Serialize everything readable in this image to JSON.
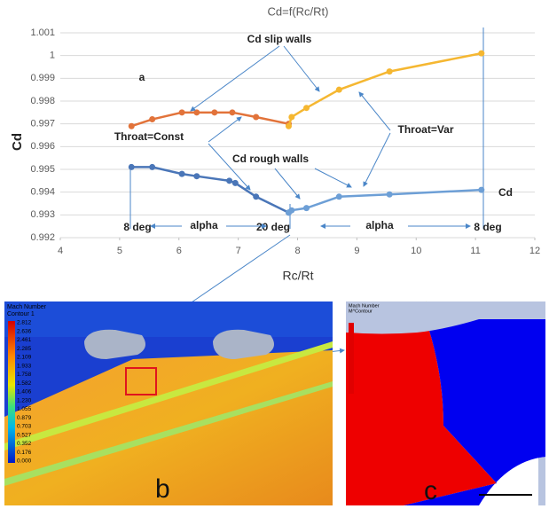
{
  "chart_data": {
    "type": "line",
    "title": "Cd=f(Rc/Rt)",
    "xlabel": "Rc/Rt",
    "ylabel": "Cd",
    "xlim": [
      4,
      12
    ],
    "xticks": [
      4,
      5,
      6,
      7,
      8,
      9,
      10,
      11,
      12
    ],
    "ylim": [
      0.992,
      1.001
    ],
    "yticks": [
      0.992,
      0.993,
      0.994,
      0.995,
      0.996,
      0.997,
      0.998,
      0.999,
      1,
      1.001
    ],
    "grid": true,
    "series": [
      {
        "color": "#e2733a",
        "x": [
          5.2,
          5.55,
          6.05,
          6.3,
          6.6,
          6.9,
          7.3,
          7.85
        ],
        "values": [
          0.9969,
          0.9972,
          0.9975,
          0.9975,
          0.9975,
          0.9975,
          0.9973,
          0.997
        ]
      },
      {
        "color": "#f5b731",
        "x": [
          7.85,
          7.9,
          8.15,
          8.7,
          9.55,
          11.1
        ],
        "values": [
          0.9969,
          0.9973,
          0.9977,
          0.9985,
          0.9993,
          1.0001
        ]
      },
      {
        "color": "#4a76b8",
        "x": [
          5.2,
          5.55,
          6.05,
          6.3,
          6.85,
          6.95,
          7.3,
          7.85
        ],
        "values": [
          0.9951,
          0.9951,
          0.9948,
          0.9947,
          0.9945,
          0.9944,
          0.9938,
          0.9931
        ]
      },
      {
        "color": "#6d9fd6",
        "x": [
          7.85,
          7.9,
          8.15,
          8.7,
          9.55,
          11.1
        ],
        "values": [
          0.9931,
          0.9932,
          0.9933,
          0.9938,
          0.9939,
          0.9941
        ]
      }
    ],
    "annotations": [
      "a",
      "Cd slip walls",
      "Throat=Const",
      "Cd rough walls",
      "Throat=Var",
      "Cd",
      "8 deg",
      "alpha",
      "20 deg",
      "alpha",
      "8 deg"
    ]
  },
  "panel_b": {
    "label": "b",
    "legend_title": "Mach Number",
    "legend_subtitle": "Contour 1",
    "legend_values": [
      "2.812",
      "2.636",
      "2.461",
      "2.285",
      "2.109",
      "1.933",
      "1.758",
      "1.582",
      "1.406",
      "1.230",
      "1.055",
      "0.879",
      "0.703",
      "0.527",
      "0.352",
      "0.176",
      "0.000"
    ]
  },
  "panel_c": {
    "label": "c",
    "legend_title": "Mach Number",
    "legend_subtitle": "M^Contour"
  }
}
